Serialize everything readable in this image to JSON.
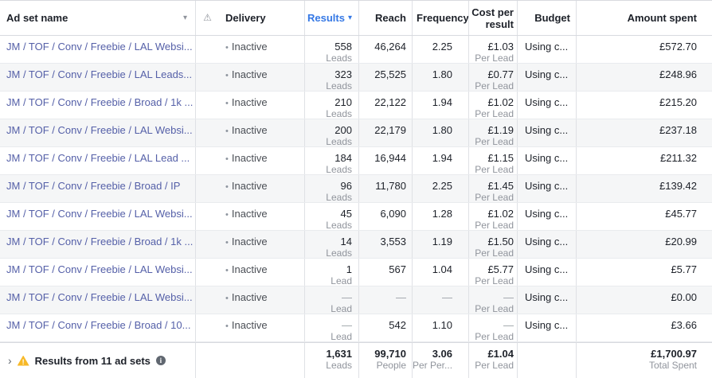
{
  "colors": {
    "accent_blue": "#3578e5",
    "link_blue": "#5560a8",
    "warning_yellow": "#f7b928",
    "dark_text": "#1d2129",
    "gray_text": "#90949c"
  },
  "icons": {
    "sort_caret": "▾",
    "warning": "⚠",
    "status_dot": "•",
    "chevron": "›",
    "info_glyph": "i",
    "warning_glyph": "!"
  },
  "table": {
    "header": {
      "ad_set_name": "Ad set name",
      "delivery": "Delivery",
      "results": "Results",
      "reach": "Reach",
      "frequency": "Frequency",
      "cost_per_result": "Cost per result",
      "budget": "Budget",
      "amount_spent": "Amount spent"
    },
    "rows": [
      {
        "name": "JM / TOF / Conv / Freebie / LAL Websi...",
        "delivery": "Inactive",
        "results": "558",
        "results_unit": "Leads",
        "reach": "46,264",
        "frequency": "2.25",
        "cost": "£1.03",
        "cost_unit": "Per Lead",
        "budget": "Using c...",
        "spent": "£572.70"
      },
      {
        "name": "JM / TOF / Conv / Freebie / LAL Leads...",
        "delivery": "Inactive",
        "results": "323",
        "results_unit": "Leads",
        "reach": "25,525",
        "frequency": "1.80",
        "cost": "£0.77",
        "cost_unit": "Per Lead",
        "budget": "Using c...",
        "spent": "£248.96"
      },
      {
        "name": "JM / TOF / Conv / Freebie / Broad / 1k ...",
        "delivery": "Inactive",
        "results": "210",
        "results_unit": "Leads",
        "reach": "22,122",
        "frequency": "1.94",
        "cost": "£1.02",
        "cost_unit": "Per Lead",
        "budget": "Using c...",
        "spent": "£215.20"
      },
      {
        "name": "JM / TOF / Conv / Freebie / LAL Websi...",
        "delivery": "Inactive",
        "results": "200",
        "results_unit": "Leads",
        "reach": "22,179",
        "frequency": "1.80",
        "cost": "£1.19",
        "cost_unit": "Per Lead",
        "budget": "Using c...",
        "spent": "£237.18"
      },
      {
        "name": "JM / TOF / Conv / Freebie / LAL Lead ...",
        "delivery": "Inactive",
        "results": "184",
        "results_unit": "Leads",
        "reach": "16,944",
        "frequency": "1.94",
        "cost": "£1.15",
        "cost_unit": "Per Lead",
        "budget": "Using c...",
        "spent": "£211.32"
      },
      {
        "name": "JM / TOF / Conv / Freebie / Broad / IP",
        "delivery": "Inactive",
        "results": "96",
        "results_unit": "Leads",
        "reach": "11,780",
        "frequency": "2.25",
        "cost": "£1.45",
        "cost_unit": "Per Lead",
        "budget": "Using c...",
        "spent": "£139.42"
      },
      {
        "name": "JM / TOF / Conv / Freebie / LAL Websi...",
        "delivery": "Inactive",
        "results": "45",
        "results_unit": "Leads",
        "reach": "6,090",
        "frequency": "1.28",
        "cost": "£1.02",
        "cost_unit": "Per Lead",
        "budget": "Using c...",
        "spent": "£45.77"
      },
      {
        "name": "JM / TOF / Conv / Freebie / Broad / 1k ...",
        "delivery": "Inactive",
        "results": "14",
        "results_unit": "Leads",
        "reach": "3,553",
        "frequency": "1.19",
        "cost": "£1.50",
        "cost_unit": "Per Lead",
        "budget": "Using c...",
        "spent": "£20.99"
      },
      {
        "name": "JM / TOF / Conv / Freebie / LAL Websi...",
        "delivery": "Inactive",
        "results": "1",
        "results_unit": "Lead",
        "reach": "567",
        "frequency": "1.04",
        "cost": "£5.77",
        "cost_unit": "Per Lead",
        "budget": "Using c...",
        "spent": "£5.77"
      },
      {
        "name": "JM / TOF / Conv / Freebie / LAL Websi...",
        "delivery": "Inactive",
        "results": "—",
        "results_unit": "Lead",
        "reach": "—",
        "frequency": "—",
        "cost": "—",
        "cost_unit": "Per Lead",
        "budget": "Using c...",
        "spent": "£0.00"
      },
      {
        "name": "JM / TOF / Conv / Freebie / Broad / 10...",
        "delivery": "Inactive",
        "results": "—",
        "results_unit": "Lead",
        "reach": "542",
        "frequency": "1.10",
        "cost": "—",
        "cost_unit": "Per Lead",
        "budget": "Using c...",
        "spent": "£3.66"
      }
    ],
    "footer": {
      "label": "Results from 11 ad sets",
      "results": "1,631",
      "results_unit": "Leads",
      "reach": "99,710",
      "reach_unit": "People",
      "frequency": "3.06",
      "frequency_unit": "Per Per...",
      "cost": "£1.04",
      "cost_unit": "Per Lead",
      "spent": "£1,700.97",
      "spent_unit": "Total Spent"
    }
  }
}
